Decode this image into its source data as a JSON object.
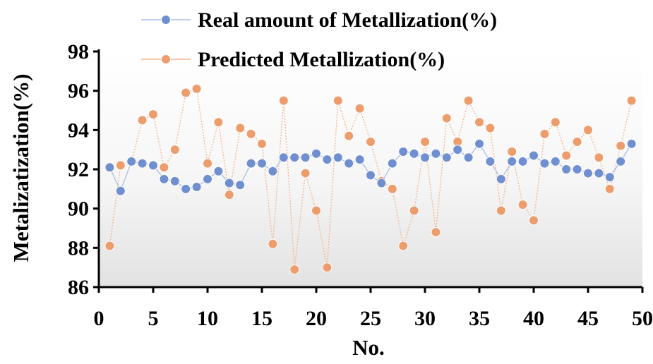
{
  "chart_data": {
    "type": "line",
    "xlabel": "No.",
    "ylabel": "Metalizatization(%)",
    "xlim": [
      0,
      50
    ],
    "ylim": [
      86,
      98
    ],
    "xticks": [
      "0",
      "5",
      "10",
      "15",
      "20",
      "25",
      "30",
      "35",
      "40",
      "45",
      "50"
    ],
    "yticks": [
      "86",
      "88",
      "90",
      "92",
      "94",
      "96",
      "98"
    ],
    "x": [
      1,
      2,
      3,
      4,
      5,
      6,
      7,
      8,
      9,
      10,
      11,
      12,
      13,
      14,
      15,
      16,
      17,
      18,
      19,
      20,
      21,
      22,
      23,
      24,
      25,
      26,
      27,
      28,
      29,
      30,
      31,
      32,
      33,
      34,
      35,
      36,
      37,
      38,
      39,
      40,
      41,
      42,
      43,
      44,
      45,
      46,
      47,
      48,
      49
    ],
    "series": [
      {
        "name": "Real amount of Metallization(%)",
        "color": "#6f8fd0",
        "line_color": "#a9bde6",
        "values": [
          92.1,
          90.9,
          92.4,
          92.3,
          92.2,
          91.5,
          91.4,
          91.0,
          91.1,
          91.5,
          91.9,
          91.3,
          91.2,
          92.3,
          92.3,
          91.9,
          92.6,
          92.6,
          92.6,
          92.8,
          92.5,
          92.6,
          92.3,
          92.5,
          91.7,
          91.3,
          92.3,
          92.9,
          92.8,
          92.6,
          92.8,
          92.6,
          93.0,
          92.6,
          93.3,
          92.4,
          91.5,
          92.4,
          92.4,
          92.7,
          92.3,
          92.4,
          92.0,
          92.0,
          91.8,
          91.8,
          91.6,
          92.4,
          93.3
        ]
      },
      {
        "name": "Predicted Metallization(%)",
        "color": "#ed9c6c",
        "line_color": "#f3b48b",
        "values": [
          88.1,
          92.2,
          92.4,
          94.5,
          94.8,
          92.1,
          93.0,
          95.9,
          96.1,
          92.3,
          94.4,
          90.7,
          94.1,
          93.8,
          93.3,
          88.2,
          95.5,
          86.9,
          91.8,
          89.9,
          87.0,
          95.5,
          93.7,
          95.1,
          93.4,
          91.4,
          91.0,
          88.1,
          89.9,
          93.4,
          88.8,
          94.6,
          93.4,
          95.5,
          94.4,
          94.1,
          89.9,
          92.9,
          90.2,
          89.4,
          93.8,
          94.4,
          92.7,
          93.4,
          94.0,
          92.6,
          91.0,
          93.2,
          95.5
        ]
      }
    ],
    "legend_position": "top",
    "grid": false,
    "plot_background": "gradient white to light gray"
  }
}
